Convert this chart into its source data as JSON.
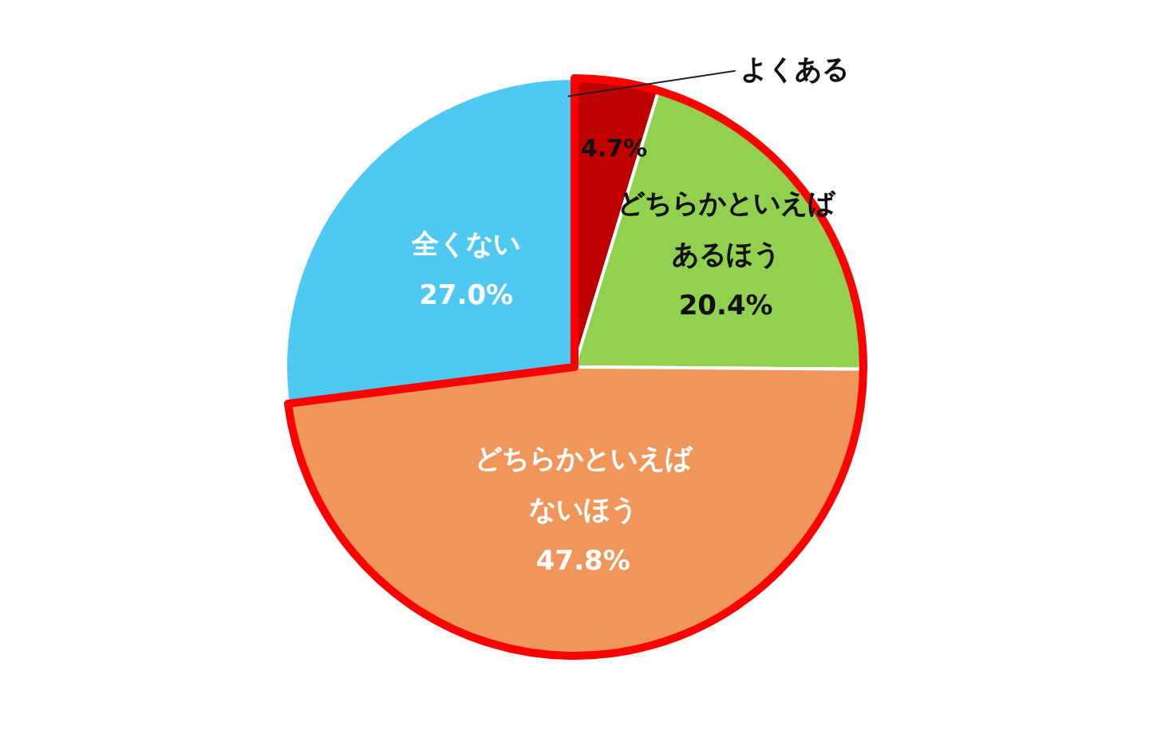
{
  "chart_data": {
    "type": "pie",
    "categories": [
      "よくある",
      "どちらかといえばあるほう",
      "どちらかといえばないほう",
      "全くない"
    ],
    "values": [
      4.7,
      20.4,
      47.8,
      27.0
    ],
    "colors": [
      "#c00000",
      "#92d050",
      "#f0965a",
      "#4fc8f2"
    ],
    "value_labels": [
      "4.7%",
      "20.4%",
      "47.8%",
      "27.0%"
    ],
    "legend": false
  }
}
